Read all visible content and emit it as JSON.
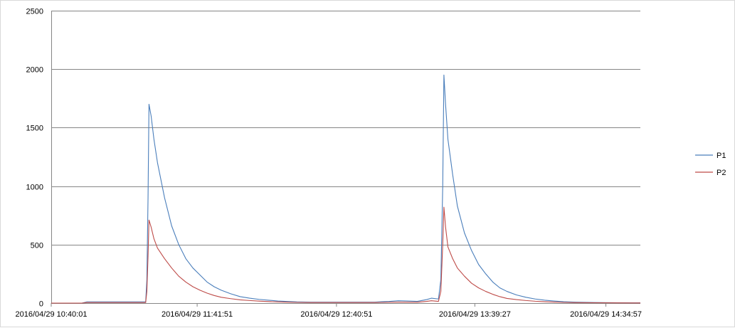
{
  "chart_data": {
    "type": "line",
    "title": "",
    "xlabel": "",
    "ylabel": "",
    "ylim": [
      0,
      2500
    ],
    "yticks": [
      0,
      500,
      1000,
      1500,
      2000,
      2500
    ],
    "x_tick_labels": [
      "2016/04/29 10:40:01",
      "2016/04/29 11:41:51",
      "2016/04/29 12:40:51",
      "2016/04/29 13:39:27",
      "2016/04/29 14:34:57"
    ],
    "x_tick_positions": [
      0,
      61.8,
      120.8,
      179.4,
      234.9
    ],
    "x_unit": "minutes from first sample",
    "xlim": [
      0,
      249.5
    ],
    "grid": true,
    "legend_position": "right",
    "series": [
      {
        "name": "P1",
        "color": "#4a7ebb",
        "points": [
          [
            0,
            0
          ],
          [
            13,
            0
          ],
          [
            15,
            10
          ],
          [
            38,
            10
          ],
          [
            39,
            10
          ],
          [
            40,
            10
          ],
          [
            40.5,
            200
          ],
          [
            41,
            900
          ],
          [
            41.4,
            1700
          ],
          [
            42.3,
            1600
          ],
          [
            43.5,
            1400
          ],
          [
            45,
            1200
          ],
          [
            48,
            900
          ],
          [
            51,
            660
          ],
          [
            54,
            500
          ],
          [
            57,
            380
          ],
          [
            60,
            300
          ],
          [
            63,
            240
          ],
          [
            66,
            180
          ],
          [
            69,
            140
          ],
          [
            72,
            110
          ],
          [
            76,
            80
          ],
          [
            80,
            55
          ],
          [
            84,
            42
          ],
          [
            88,
            32
          ],
          [
            92,
            25
          ],
          [
            96,
            18
          ],
          [
            100,
            14
          ],
          [
            104,
            10
          ],
          [
            110,
            8
          ],
          [
            120,
            8
          ],
          [
            127,
            8
          ],
          [
            137,
            8
          ],
          [
            140,
            12
          ],
          [
            143,
            14
          ],
          [
            147,
            20
          ],
          [
            151,
            18
          ],
          [
            155,
            15
          ],
          [
            159,
            30
          ],
          [
            161,
            42
          ],
          [
            164,
            35
          ],
          [
            165,
            200
          ],
          [
            165.8,
            1000
          ],
          [
            166.3,
            1950
          ],
          [
            167,
            1700
          ],
          [
            168,
            1400
          ],
          [
            170,
            1100
          ],
          [
            172,
            830
          ],
          [
            175,
            600
          ],
          [
            178,
            450
          ],
          [
            181,
            330
          ],
          [
            184,
            250
          ],
          [
            187,
            180
          ],
          [
            190,
            130
          ],
          [
            193,
            100
          ],
          [
            197,
            70
          ],
          [
            201,
            50
          ],
          [
            205,
            35
          ],
          [
            209,
            25
          ],
          [
            213,
            18
          ],
          [
            217,
            12
          ],
          [
            222,
            8
          ],
          [
            230,
            5
          ],
          [
            240,
            3
          ],
          [
            249.5,
            2
          ]
        ]
      },
      {
        "name": "P2",
        "color": "#be4b48",
        "points": [
          [
            0,
            0
          ],
          [
            13,
            0
          ],
          [
            15,
            5
          ],
          [
            38,
            5
          ],
          [
            40,
            5
          ],
          [
            40.5,
            100
          ],
          [
            41,
            400
          ],
          [
            41.4,
            710
          ],
          [
            42.3,
            650
          ],
          [
            43.5,
            550
          ],
          [
            45,
            470
          ],
          [
            48,
            380
          ],
          [
            51,
            300
          ],
          [
            54,
            230
          ],
          [
            57,
            180
          ],
          [
            60,
            140
          ],
          [
            63,
            110
          ],
          [
            66,
            85
          ],
          [
            69,
            65
          ],
          [
            72,
            50
          ],
          [
            76,
            38
          ],
          [
            80,
            28
          ],
          [
            84,
            22
          ],
          [
            88,
            17
          ],
          [
            92,
            13
          ],
          [
            96,
            10
          ],
          [
            100,
            8
          ],
          [
            104,
            6
          ],
          [
            110,
            5
          ],
          [
            127,
            5
          ],
          [
            137,
            5
          ],
          [
            140,
            6
          ],
          [
            147,
            8
          ],
          [
            155,
            7
          ],
          [
            159,
            15
          ],
          [
            161,
            20
          ],
          [
            164,
            15
          ],
          [
            165,
            100
          ],
          [
            165.8,
            500
          ],
          [
            166.3,
            820
          ],
          [
            167,
            650
          ],
          [
            168,
            480
          ],
          [
            170,
            380
          ],
          [
            172,
            300
          ],
          [
            175,
            230
          ],
          [
            178,
            170
          ],
          [
            181,
            130
          ],
          [
            184,
            100
          ],
          [
            187,
            75
          ],
          [
            190,
            55
          ],
          [
            193,
            40
          ],
          [
            197,
            30
          ],
          [
            201,
            22
          ],
          [
            205,
            16
          ],
          [
            209,
            12
          ],
          [
            213,
            9
          ],
          [
            217,
            6
          ],
          [
            222,
            4
          ],
          [
            230,
            3
          ],
          [
            240,
            2
          ],
          [
            249.5,
            1
          ]
        ]
      }
    ]
  }
}
